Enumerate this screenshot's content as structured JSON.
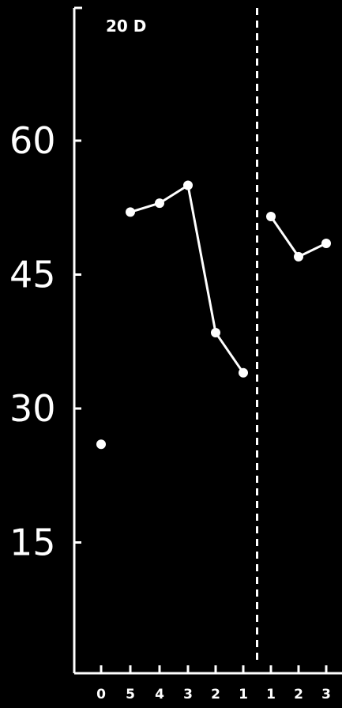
{
  "chart_data": {
    "type": "line",
    "annotation": "20 D",
    "ylim": [
      0,
      75
    ],
    "yticks": [
      "15",
      "30",
      "45",
      "60"
    ],
    "ytick_values": [
      15,
      30,
      45,
      60
    ],
    "xtick_labels": [
      "0",
      "5",
      "4",
      "3",
      "2",
      "1",
      "1",
      "2",
      "3"
    ],
    "grid": false,
    "divider_after_index": 5,
    "colors": {
      "background": "#000000",
      "foreground": "#ffffff"
    },
    "points": [
      {
        "x": "0",
        "y": 26
      },
      {
        "x": "5",
        "y": 52
      },
      {
        "x": "4",
        "y": 53
      },
      {
        "x": "3",
        "y": 55
      },
      {
        "x": "2",
        "y": 38.5
      },
      {
        "x": "1",
        "y": 34
      },
      {
        "x": "1",
        "y": 51.5
      },
      {
        "x": "2",
        "y": 47
      },
      {
        "x": "3",
        "y": 48.5
      }
    ],
    "segments": [
      [
        1,
        5
      ],
      [
        6,
        8
      ]
    ]
  }
}
